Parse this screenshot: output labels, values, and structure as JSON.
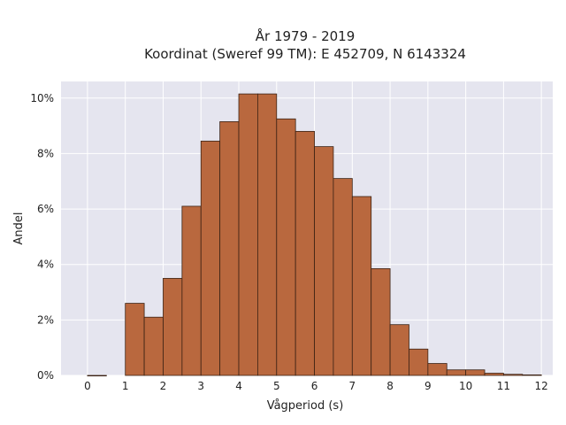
{
  "colors": {
    "plot_background": "#e5e5ef",
    "grid": "#ffffff",
    "bar_fill": "#b9683e",
    "bar_stroke": "#3b2214"
  },
  "chart_data": {
    "type": "bar",
    "title": "År 1979 - 2019",
    "subtitle": "Koordinat (Sweref 99 TM): E 452709, N 6143324",
    "xlabel": "Vågperiod (s)",
    "ylabel": "Andel",
    "xlim": [
      -0.7,
      12.3
    ],
    "ylim": [
      0,
      10.6
    ],
    "xticks": [
      0,
      1,
      2,
      3,
      4,
      5,
      6,
      7,
      8,
      9,
      10,
      11,
      12
    ],
    "xtick_labels": [
      "0",
      "1",
      "2",
      "3",
      "4",
      "5",
      "6",
      "7",
      "8",
      "9",
      "10",
      "11",
      "12"
    ],
    "yticks": [
      0,
      2,
      4,
      6,
      8,
      10
    ],
    "ytick_labels": [
      "0%",
      "2%",
      "4%",
      "6%",
      "8%",
      "10%"
    ],
    "y_unit": "%",
    "grid": true,
    "bin_width": 0.5,
    "bins": [
      {
        "x0": 0.0,
        "x1": 0.5,
        "value": 0.0
      },
      {
        "x0": 1.0,
        "x1": 1.5,
        "value": 2.6
      },
      {
        "x0": 1.5,
        "x1": 2.0,
        "value": 2.1
      },
      {
        "x0": 2.0,
        "x1": 2.5,
        "value": 3.5
      },
      {
        "x0": 2.5,
        "x1": 3.0,
        "value": 6.1
      },
      {
        "x0": 3.0,
        "x1": 3.5,
        "value": 8.45
      },
      {
        "x0": 3.5,
        "x1": 4.0,
        "value": 9.15
      },
      {
        "x0": 4.0,
        "x1": 4.5,
        "value": 10.15
      },
      {
        "x0": 4.5,
        "x1": 5.0,
        "value": 10.15
      },
      {
        "x0": 5.0,
        "x1": 5.5,
        "value": 9.25
      },
      {
        "x0": 5.5,
        "x1": 6.0,
        "value": 8.8
      },
      {
        "x0": 6.0,
        "x1": 6.5,
        "value": 8.25
      },
      {
        "x0": 6.5,
        "x1": 7.0,
        "value": 7.1
      },
      {
        "x0": 7.0,
        "x1": 7.5,
        "value": 6.45
      },
      {
        "x0": 7.5,
        "x1": 8.0,
        "value": 3.85
      },
      {
        "x0": 8.0,
        "x1": 8.5,
        "value": 1.83
      },
      {
        "x0": 8.5,
        "x1": 9.0,
        "value": 0.95
      },
      {
        "x0": 9.0,
        "x1": 9.5,
        "value": 0.43
      },
      {
        "x0": 9.5,
        "x1": 10.0,
        "value": 0.2
      },
      {
        "x0": 10.0,
        "x1": 10.5,
        "value": 0.2
      },
      {
        "x0": 10.5,
        "x1": 11.0,
        "value": 0.08
      },
      {
        "x0": 11.0,
        "x1": 11.5,
        "value": 0.04
      },
      {
        "x0": 11.5,
        "x1": 12.0,
        "value": 0.02
      }
    ]
  }
}
